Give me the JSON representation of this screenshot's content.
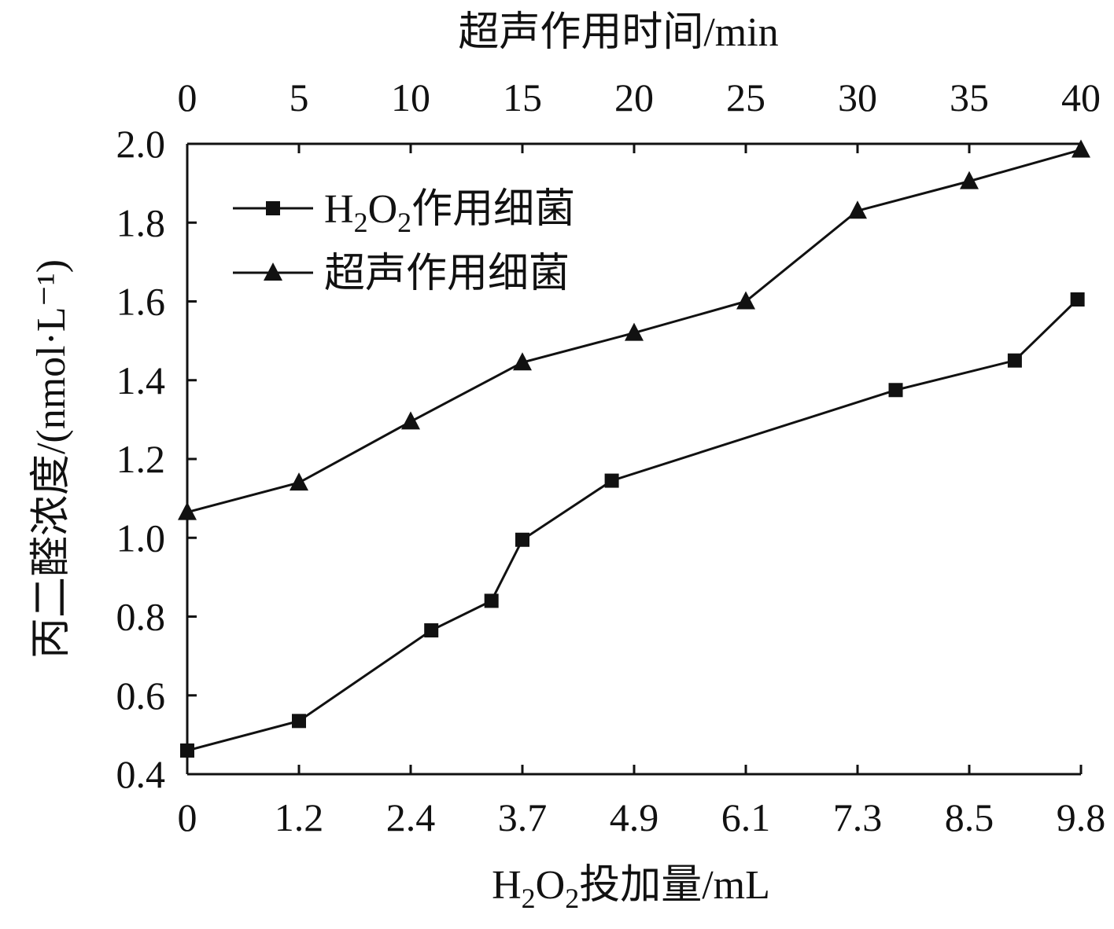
{
  "chart_data": {
    "type": "line",
    "xlabel_bottom": "H2O2投加量/mL",
    "xlabel_top": "超声作用时间/min",
    "ylabel": "丙二醛浓度/(nmol·L⁻¹)",
    "ylim": [
      0.4,
      2.0
    ],
    "y_ticks": [
      "0.4",
      "0.6",
      "0.8",
      "1.0",
      "1.2",
      "1.4",
      "1.6",
      "1.8",
      "2.0"
    ],
    "x_bottom_ticks": [
      "0",
      "1.2",
      "2.4",
      "3.7",
      "4.9",
      "6.1",
      "7.3",
      "8.5",
      "9.8"
    ],
    "x_top_ticks": [
      "0",
      "5",
      "10",
      "15",
      "20",
      "25",
      "30",
      "35",
      "40"
    ],
    "x_top_range": [
      0,
      40
    ],
    "legend_position": "top-left",
    "grid": false,
    "series": [
      {
        "name": "H2O2作用细菌",
        "marker": "square",
        "axis": "bottom",
        "x": [
          0,
          1.2,
          2.64,
          3.34,
          3.7,
          4.66,
          7.71,
          9.03,
          9.76
        ],
        "y": [
          0.46,
          0.535,
          0.765,
          0.84,
          0.995,
          1.145,
          1.375,
          1.45,
          1.605
        ]
      },
      {
        "name": "超声作用细菌",
        "marker": "triangle",
        "axis": "top",
        "x": [
          0,
          5,
          10,
          15,
          20,
          25,
          30,
          35,
          40
        ],
        "y": [
          1.065,
          1.14,
          1.295,
          1.445,
          1.52,
          1.6,
          1.83,
          1.905,
          1.985
        ]
      }
    ]
  }
}
